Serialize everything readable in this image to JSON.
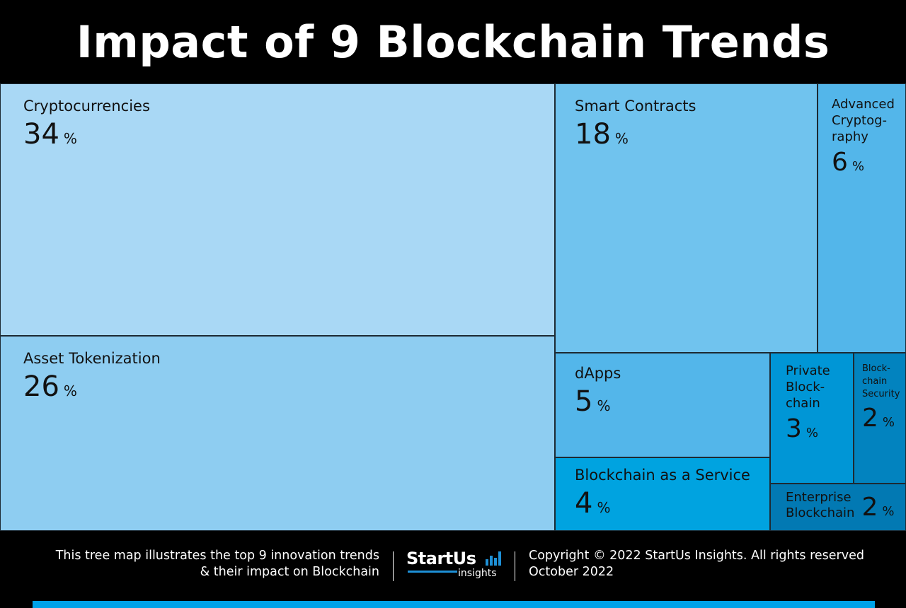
{
  "title": "Impact of 9 Blockchain Trends",
  "chart_data": {
    "type": "treemap",
    "title": "Impact of 9 Blockchain Trends",
    "unit": "%",
    "items": [
      {
        "label": "Cryptocurrencies",
        "value": 34,
        "color": "#a9d8f5"
      },
      {
        "label": "Asset Tokenization",
        "value": 26,
        "color": "#8ecdf1"
      },
      {
        "label": "Smart Contracts",
        "value": 18,
        "color": "#70c3ee"
      },
      {
        "label": "Advanced\nCryptog-\nraphy",
        "value": 6,
        "color": "#53b6ea"
      },
      {
        "label": "dApps",
        "value": 5,
        "color": "#53b6ea"
      },
      {
        "label": "Blockchain as a Service",
        "value": 4,
        "color": "#00a3e0"
      },
      {
        "label": "Private\nBlock-\nchain",
        "value": 3,
        "color": "#0096d6"
      },
      {
        "label": "Block-\nchain\nSecurity",
        "value": 2,
        "color": "#0283bf"
      },
      {
        "label": "Enterprise\nBlockchain",
        "value": 2,
        "color": "#0279b3"
      }
    ]
  },
  "footer": {
    "description_line1": "This tree map illustrates the top 9 innovation trends",
    "description_line2": "& their impact on Blockchain",
    "logo_main": "StartUs",
    "logo_sub": "insights",
    "copyright": "Copyright © 2022 StartUs Insights. All rights reserved",
    "date": "October 2022",
    "accent_color": "#00a2e8"
  }
}
